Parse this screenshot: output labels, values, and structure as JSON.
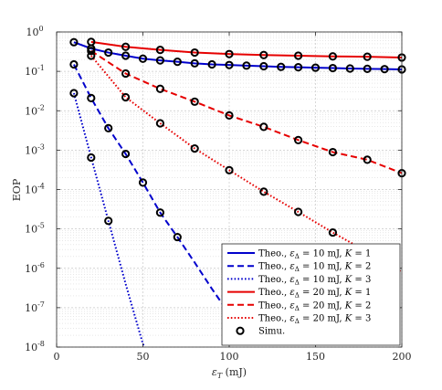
{
  "chart_data": {
    "type": "line",
    "xlabel": "εT (mJ)",
    "ylabel": "EOP",
    "xlim": [
      0,
      200
    ],
    "ylim": [
      1e-08,
      1
    ],
    "yscale": "log",
    "grid": true,
    "legend_position": "bottom-right",
    "x_ticks": [
      0,
      50,
      100,
      150,
      200
    ],
    "y_ticks": [
      {
        "value": 1,
        "base": "10",
        "exp": "0"
      },
      {
        "value": 0.1,
        "base": "10",
        "exp": "-1"
      },
      {
        "value": 0.01,
        "base": "10",
        "exp": "-2"
      },
      {
        "value": 0.001,
        "base": "10",
        "exp": "-3"
      },
      {
        "value": 0.0001,
        "base": "10",
        "exp": "-4"
      },
      {
        "value": 1e-05,
        "base": "10",
        "exp": "-5"
      },
      {
        "value": 1e-06,
        "base": "10",
        "exp": "-6"
      },
      {
        "value": 1e-07,
        "base": "10",
        "exp": "-7"
      },
      {
        "value": 1e-08,
        "base": "10",
        "exp": "-8"
      }
    ],
    "series": [
      {
        "name": "Theo., εΔ = 10 mJ, K = 1",
        "color": "#0000cc",
        "dash": "solid",
        "x": [
          10,
          20,
          30,
          40,
          50,
          60,
          70,
          80,
          90,
          100,
          110,
          120,
          130,
          140,
          150,
          160,
          170,
          180,
          190,
          200
        ],
        "y": [
          0.55,
          0.38,
          0.3,
          0.25,
          0.21,
          0.19,
          0.175,
          0.16,
          0.15,
          0.145,
          0.14,
          0.135,
          0.13,
          0.127,
          0.124,
          0.121,
          0.118,
          0.116,
          0.114,
          0.112
        ]
      },
      {
        "name": "Theo., εΔ = 10 mJ, K = 2",
        "color": "#0000cc",
        "dash": "dashed",
        "x": [
          10,
          20,
          30,
          40,
          50,
          60,
          70,
          80,
          90,
          100
        ],
        "y": [
          0.15,
          0.021,
          0.0036,
          0.0008,
          0.00015,
          2.6e-05,
          6.2e-06,
          1.4e-06,
          3e-07,
          7e-08
        ]
      },
      {
        "name": "Theo., εΔ = 10 mJ, K = 3",
        "color": "#0000cc",
        "dash": "dotted",
        "x": [
          10,
          20,
          30,
          40,
          50,
          52
        ],
        "y": [
          0.028,
          0.00065,
          1.6e-05,
          4e-07,
          1.2e-08,
          8e-09
        ]
      },
      {
        "name": "Theo., εΔ = 20 mJ, K = 1",
        "color": "#e60000",
        "dash": "solid",
        "x": [
          20,
          40,
          60,
          80,
          100,
          120,
          140,
          160,
          180,
          200
        ],
        "y": [
          0.56,
          0.42,
          0.35,
          0.3,
          0.275,
          0.26,
          0.25,
          0.24,
          0.235,
          0.225
        ]
      },
      {
        "name": "Theo., εΔ = 20 mJ, K = 2",
        "color": "#e60000",
        "dash": "dashed",
        "x": [
          20,
          40,
          60,
          80,
          100,
          120,
          140,
          160,
          180,
          200
        ],
        "y": [
          0.33,
          0.088,
          0.036,
          0.017,
          0.0076,
          0.0039,
          0.0018,
          0.00089,
          0.00057,
          0.00026
        ]
      },
      {
        "name": "Theo., εΔ = 20 mJ, K = 3",
        "color": "#e60000",
        "dash": "dotted",
        "x": [
          20,
          40,
          60,
          80,
          100,
          120,
          140,
          160,
          180,
          200
        ],
        "y": [
          0.25,
          0.022,
          0.0048,
          0.0011,
          0.00031,
          8.8e-05,
          2.7e-05,
          8.1e-06,
          2.6e-06,
          8e-07
        ]
      }
    ],
    "markers": [
      {
        "x": [
          10,
          20,
          30,
          40,
          50,
          60,
          70,
          80,
          90,
          100,
          110,
          120,
          130,
          140,
          150,
          160,
          170,
          180,
          190,
          200
        ],
        "y": [
          0.55,
          0.38,
          0.3,
          0.25,
          0.21,
          0.19,
          0.175,
          0.16,
          0.15,
          0.145,
          0.14,
          0.135,
          0.13,
          0.127,
          0.124,
          0.121,
          0.118,
          0.116,
          0.114,
          0.112
        ]
      },
      {
        "x": [
          10,
          20,
          30,
          40,
          50,
          60,
          70
        ],
        "y": [
          0.15,
          0.021,
          0.0036,
          0.0008,
          0.00015,
          2.6e-05,
          6.2e-06
        ]
      },
      {
        "x": [
          10,
          20,
          30
        ],
        "y": [
          0.028,
          0.00065,
          1.6e-05
        ]
      },
      {
        "x": [
          20,
          40,
          60,
          80,
          100,
          120,
          140,
          160,
          180,
          200
        ],
        "y": [
          0.56,
          0.42,
          0.35,
          0.3,
          0.275,
          0.26,
          0.25,
          0.24,
          0.235,
          0.225
        ]
      },
      {
        "x": [
          20,
          40,
          60,
          80,
          100,
          120,
          140,
          160,
          180,
          200
        ],
        "y": [
          0.33,
          0.088,
          0.036,
          0.017,
          0.0076,
          0.0039,
          0.0018,
          0.00089,
          0.00057,
          0.00026
        ]
      },
      {
        "x": [
          20,
          40,
          60,
          80,
          100,
          120,
          140,
          160
        ],
        "y": [
          0.25,
          0.022,
          0.0048,
          0.0011,
          0.00031,
          8.8e-05,
          2.7e-05,
          8.1e-06
        ]
      }
    ],
    "legend": [
      {
        "label": "Theo., εΔ = 10 mJ, K = 1",
        "color": "#0000cc",
        "style": "solid"
      },
      {
        "label": "Theo., εΔ = 10 mJ, K = 2",
        "color": "#0000cc",
        "style": "dashed"
      },
      {
        "label": "Theo., εΔ = 10 mJ, K = 3",
        "color": "#0000cc",
        "style": "dotted"
      },
      {
        "label": "Theo., εΔ = 20 mJ, K = 1",
        "color": "#e60000",
        "style": "solid"
      },
      {
        "label": "Theo., εΔ = 20 mJ, K = 2",
        "color": "#e60000",
        "style": "dashed"
      },
      {
        "label": "Theo., εΔ = 20 mJ, K = 3",
        "color": "#e60000",
        "style": "dotted"
      },
      {
        "label": "Simu.",
        "color": "#000000",
        "style": "marker"
      }
    ]
  }
}
